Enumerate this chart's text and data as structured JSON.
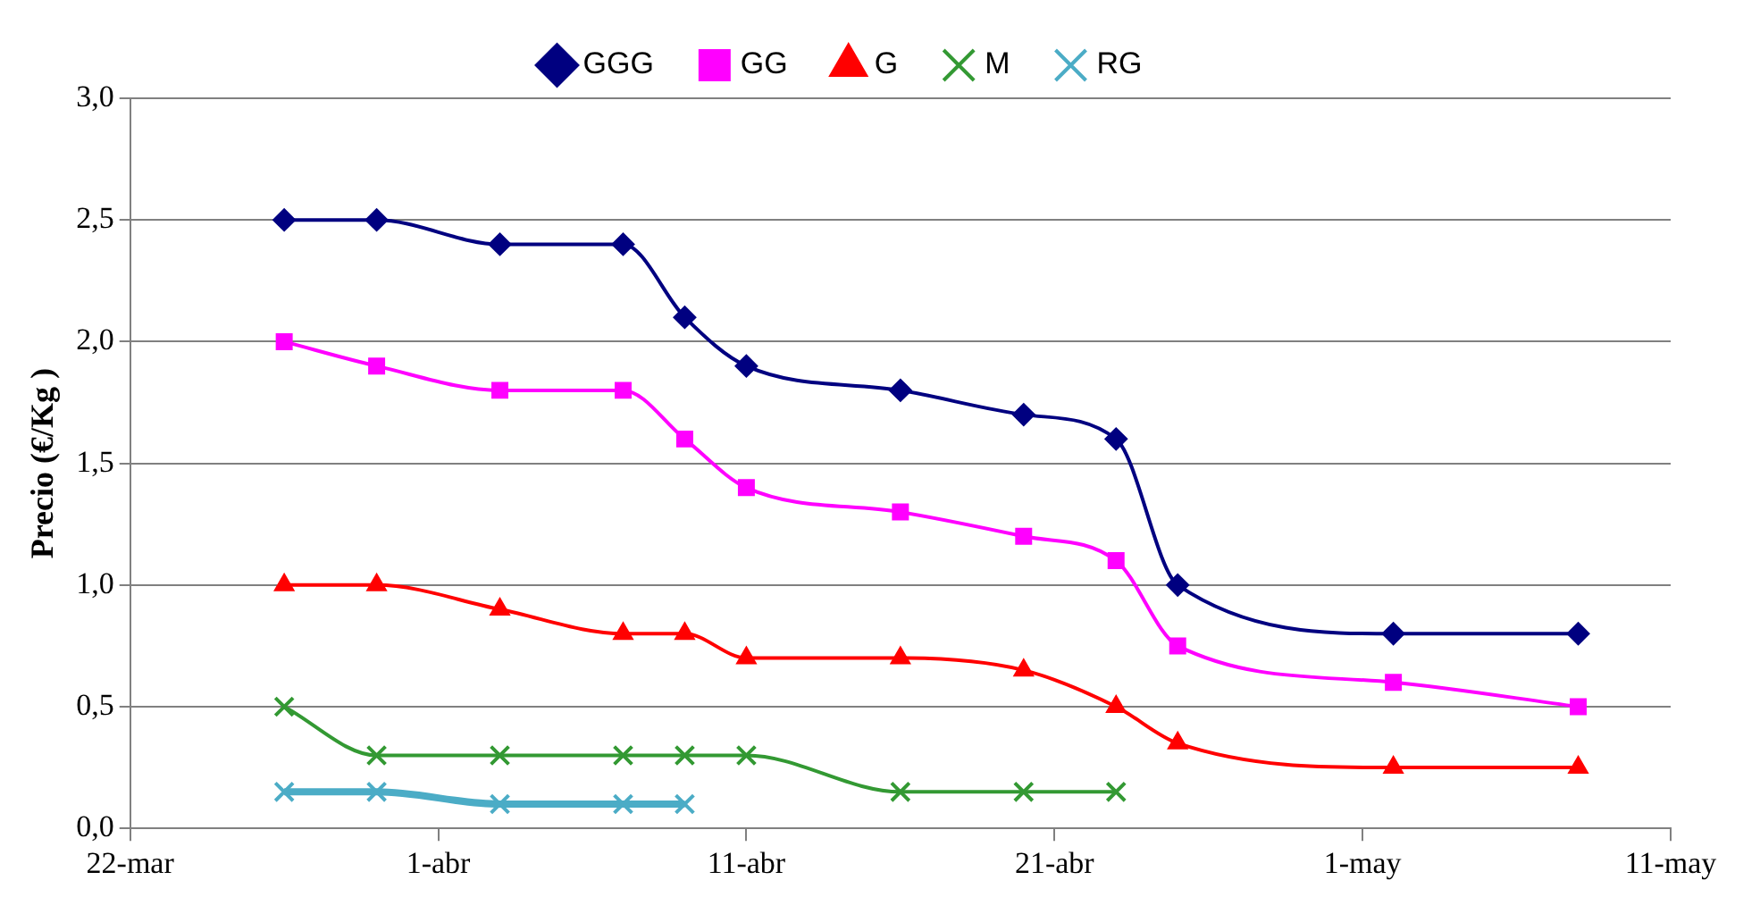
{
  "chart_data": {
    "type": "line",
    "ylabel": "Precio (€/Kg )",
    "x": [
      "--03-27",
      "--03-30",
      "--04-03",
      "--04-07",
      "--04-09",
      "--04-11",
      "--04-16",
      "--04-20",
      "--04-23",
      "--04-25",
      "--05-02",
      "--05-08"
    ],
    "series": [
      {
        "name": "GGG",
        "color": "#000080",
        "marker": "diamond",
        "values": [
          2.5,
          2.5,
          2.4,
          2.4,
          2.1,
          1.9,
          1.8,
          1.7,
          1.6,
          1.0,
          0.8,
          0.8
        ]
      },
      {
        "name": "GG",
        "color": "#ff00ff",
        "marker": "square",
        "values": [
          2.0,
          1.9,
          1.8,
          1.8,
          1.6,
          1.4,
          1.3,
          1.2,
          1.1,
          0.75,
          0.6,
          0.5
        ]
      },
      {
        "name": "G",
        "color": "#ff0000",
        "marker": "triangle",
        "values": [
          1.0,
          1.0,
          0.9,
          0.8,
          0.8,
          0.7,
          0.7,
          0.65,
          0.5,
          0.35,
          0.25,
          0.25
        ]
      },
      {
        "name": "M",
        "color": "#339933",
        "marker": "cross",
        "x": [
          "--03-27",
          "--03-30",
          "--04-03",
          "--04-07",
          "--04-09",
          "--04-11",
          "--04-16",
          "--04-20",
          "--04-23"
        ],
        "values": [
          0.5,
          0.3,
          0.3,
          0.3,
          0.3,
          0.3,
          0.15,
          0.15,
          0.15
        ]
      },
      {
        "name": "RG",
        "color": "#4bacc6",
        "marker": "cross",
        "x": [
          "--03-27",
          "--03-30",
          "--04-03",
          "--04-07",
          "--04-09"
        ],
        "values": [
          0.15,
          0.15,
          0.1,
          0.1,
          0.1
        ]
      }
    ],
    "xlim": [
      "--03-22",
      "--05-11"
    ],
    "xticks": [
      {
        "value": "--03-22",
        "label": "22-mar"
      },
      {
        "value": "--04-01",
        "label": "1-abr"
      },
      {
        "value": "--04-11",
        "label": "11-abr"
      },
      {
        "value": "--04-21",
        "label": "21-abr"
      },
      {
        "value": "--05-01",
        "label": "1-may"
      },
      {
        "value": "--05-11",
        "label": "11-may"
      }
    ],
    "ylim": [
      0,
      3
    ],
    "yticks": [
      {
        "value": 0,
        "label": "0,0"
      },
      {
        "value": 0.5,
        "label": "0,5"
      },
      {
        "value": 1,
        "label": "1,0"
      },
      {
        "value": 1.5,
        "label": "1,5"
      },
      {
        "value": 2,
        "label": "2,0"
      },
      {
        "value": 2.5,
        "label": "2,5"
      },
      {
        "value": 3,
        "label": "3,0"
      }
    ],
    "grid": "y",
    "legend": "top"
  }
}
